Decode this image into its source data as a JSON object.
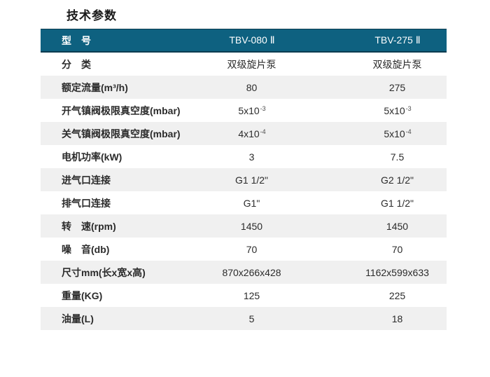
{
  "page_title": "技术参数",
  "colors": {
    "header_bg": "#0e6180",
    "header_border": "#0c3c50",
    "row_alt_bg": "#f0f0f0",
    "header_text": "#ffffff",
    "body_text": "#2b2b2b"
  },
  "table": {
    "header": {
      "label": "型　号",
      "col1": "TBV-080 Ⅱ",
      "col2": "TBV-275 Ⅱ"
    },
    "rows": [
      {
        "label": "分　类",
        "v1": "双级旋片泵",
        "v2": "双级旋片泵"
      },
      {
        "label": "额定流量(m³/h)",
        "v1": "80",
        "v2": "275"
      },
      {
        "label": "开气镇阀极限真空度(mbar)",
        "v1": "5x10",
        "v1sup": "-3",
        "v2": "5x10",
        "v2sup": "-3"
      },
      {
        "label": "关气镇阀极限真空度(mbar)",
        "v1": "4x10",
        "v1sup": "-4",
        "v2": "5x10",
        "v2sup": "-4"
      },
      {
        "label": "电机功率(kW)",
        "v1": "3",
        "v2": "7.5"
      },
      {
        "label": "进气口连接",
        "v1": "G1 1/2\"",
        "v2": "G2 1/2\""
      },
      {
        "label": "排气口连接",
        "v1": "G1\"",
        "v2": "G1 1/2\""
      },
      {
        "label": "转　速(rpm)",
        "v1": "1450",
        "v2": "1450"
      },
      {
        "label": "噪　音(db)",
        "v1": "70",
        "v2": "70"
      },
      {
        "label": "尺寸mm(长x宽x高)",
        "v1": "870x266x428",
        "v2": "1162x599x633"
      },
      {
        "label": "重量(KG)",
        "v1": "125",
        "v2": "225"
      },
      {
        "label": "油量(L)",
        "v1": "5",
        "v2": "18"
      }
    ]
  }
}
